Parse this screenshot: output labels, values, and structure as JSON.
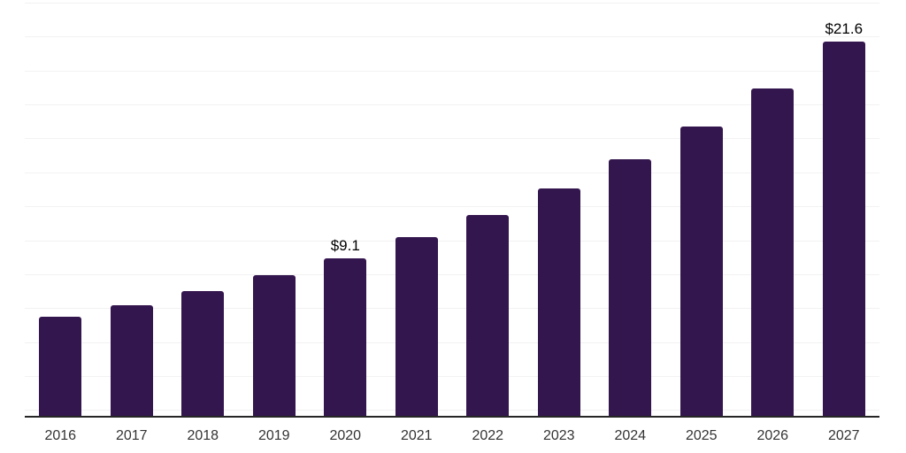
{
  "chart_data": {
    "type": "bar",
    "title": "",
    "xlabel": "",
    "ylabel": "",
    "categories": [
      "2016",
      "2017",
      "2018",
      "2019",
      "2020",
      "2021",
      "2022",
      "2023",
      "2024",
      "2025",
      "2026",
      "2027"
    ],
    "values": [
      5.7,
      6.4,
      7.2,
      8.1,
      9.1,
      10.3,
      11.6,
      13.1,
      14.8,
      16.7,
      18.9,
      21.6
    ],
    "data_labels": [
      null,
      null,
      null,
      null,
      "$9.1",
      null,
      null,
      null,
      null,
      null,
      null,
      "$21.6"
    ],
    "ylim": [
      0,
      24
    ],
    "grid": true,
    "legend": "none",
    "colors": {
      "bar": "#34164e",
      "gridline": "#f2f2f2",
      "axis_line": "#262626",
      "x_label_text": "#333333",
      "data_label_text": "#000000",
      "background": "#ffffff"
    }
  }
}
